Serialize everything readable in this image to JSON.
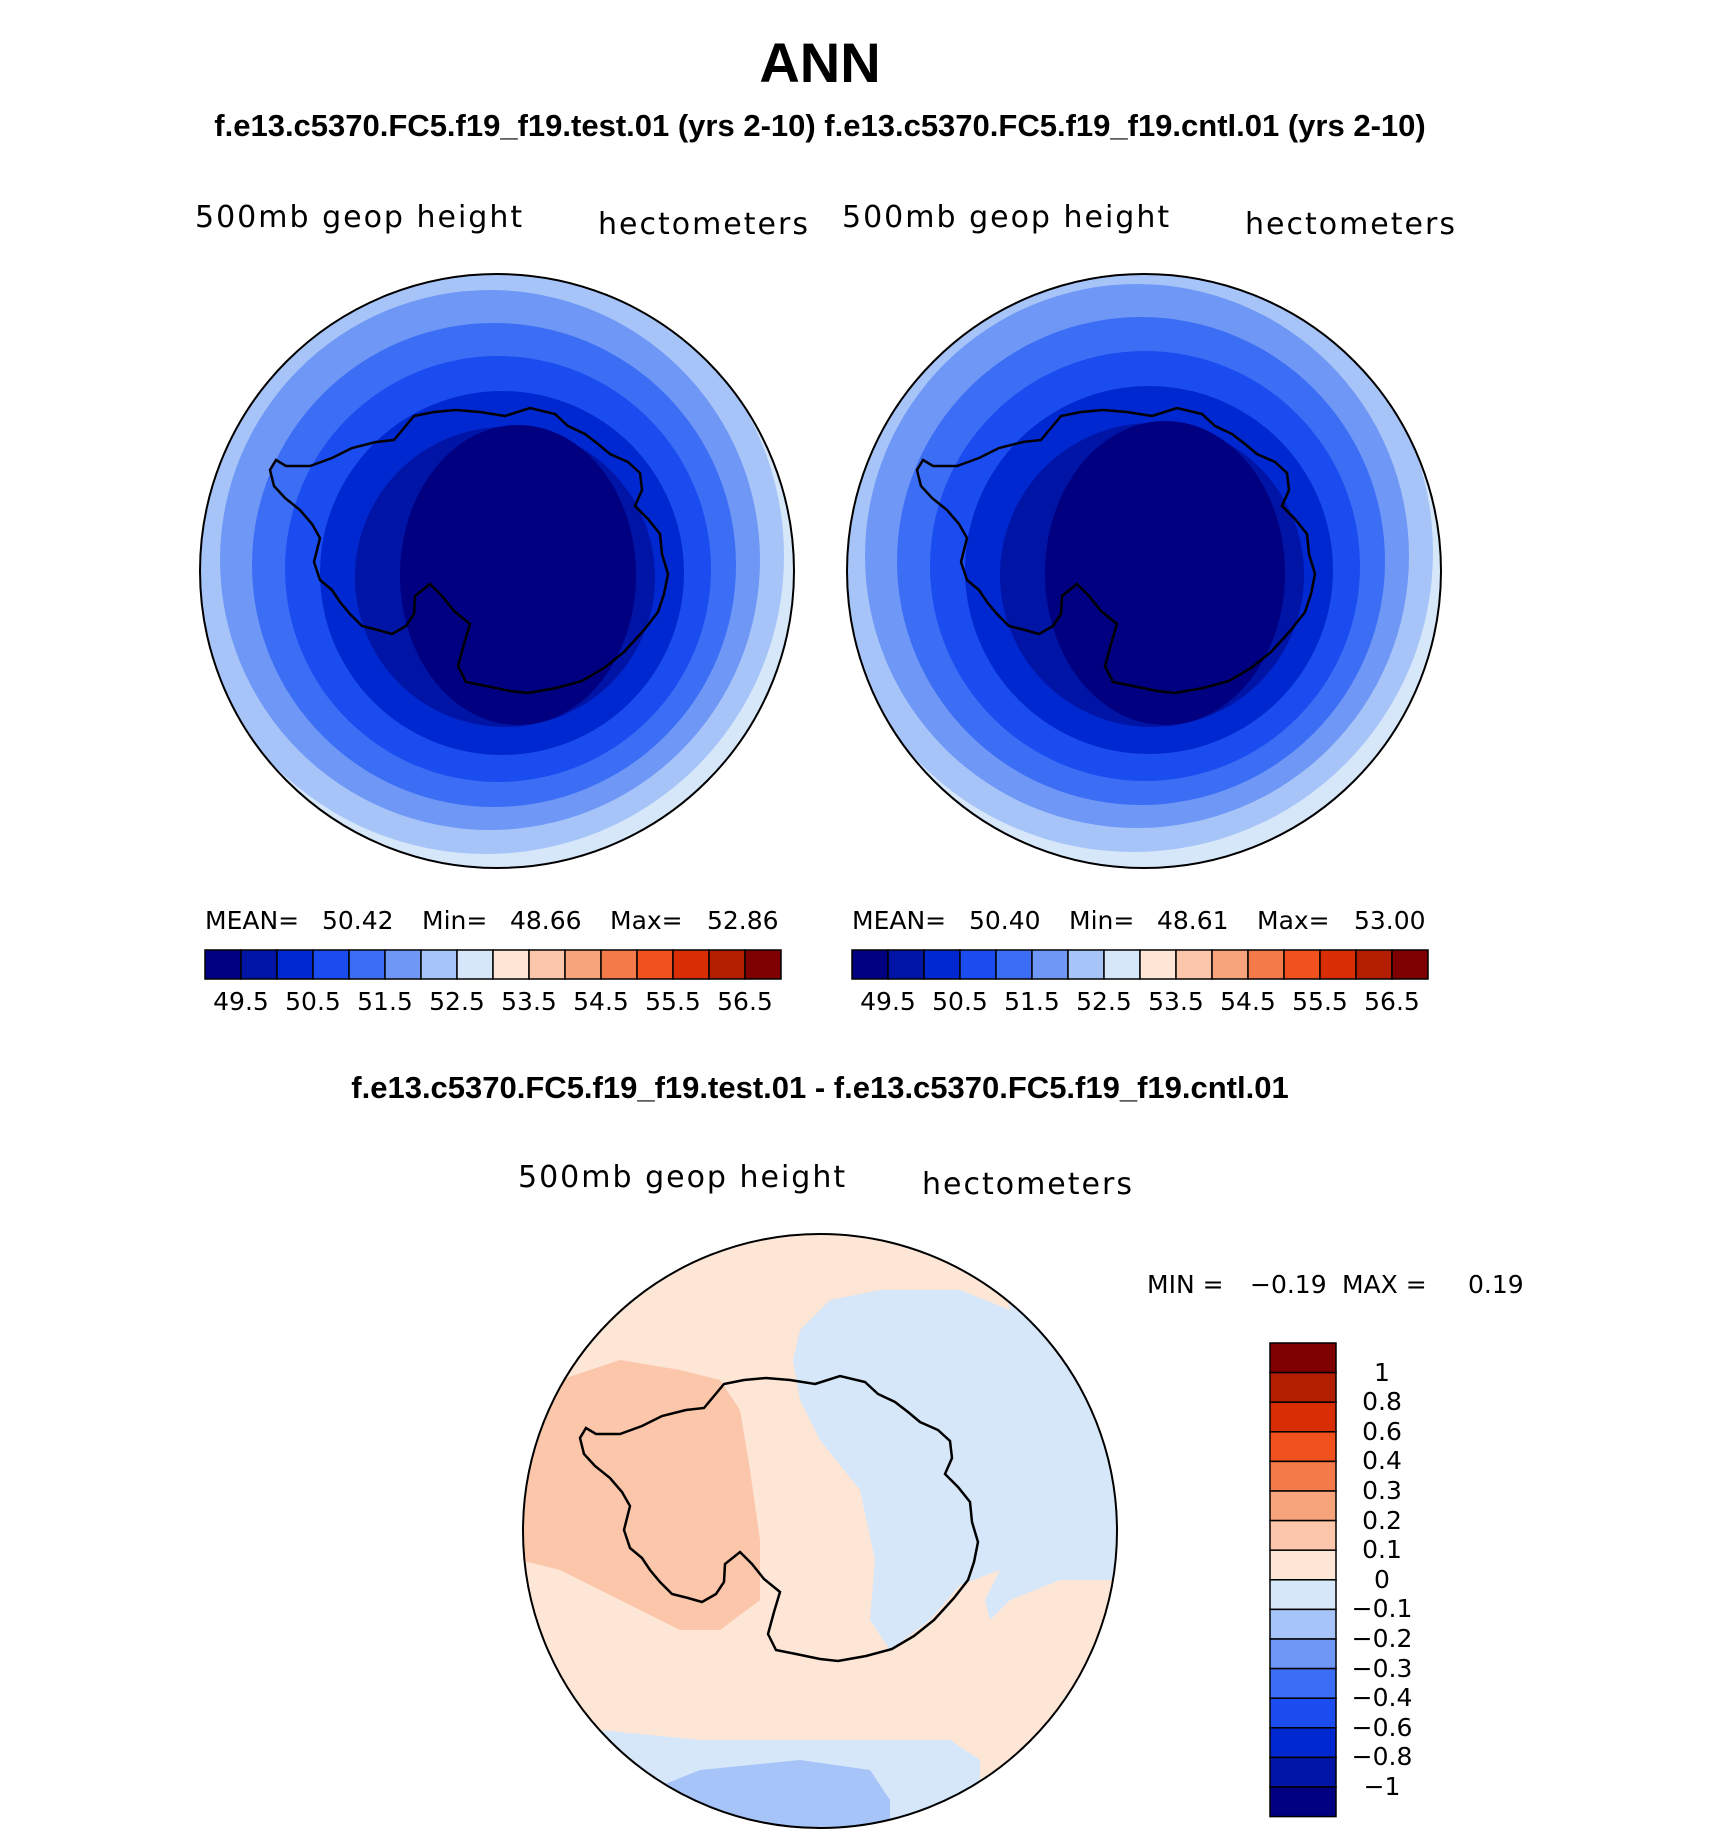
{
  "title": "ANN",
  "subtitle": "f.e13.c5370.FC5.f19_f19.test.01 (yrs 2-10) f.e13.c5370.FC5.f19_f19.cntl.01 (yrs 2-10)",
  "diff_title": "f.e13.c5370.FC5.f19_f19.test.01 - f.e13.c5370.FC5.f19_f19.cntl.01",
  "panels": [
    {
      "variable": "500mb geop height",
      "units": "hectometers",
      "stats": {
        "mean_label": "MEAN=",
        "mean": "50.42",
        "min_label": "Min=",
        "min": "48.66",
        "max_label": "Max=",
        "max": "52.86"
      }
    },
    {
      "variable": "500mb geop height",
      "units": "hectometers",
      "stats": {
        "mean_label": "MEAN=",
        "mean": "50.40",
        "min_label": "Min=",
        "min": "48.61",
        "max_label": "Max=",
        "max": "53.00"
      }
    }
  ],
  "diff_panel": {
    "variable": "500mb geop height",
    "units": "hectometers",
    "min_label": "MIN =",
    "min": "−0.19",
    "max_label": "MAX =",
    "max": "0.19"
  },
  "chart_data": [
    {
      "type": "heatmap",
      "projection": "south polar stereographic",
      "title": "500mb geop height",
      "units": "hectometers",
      "mean": 50.42,
      "min": 48.66,
      "max": 52.86,
      "levels": [
        49.5,
        50.5,
        51.5,
        52.5,
        53.5,
        54.5,
        55.5,
        56.5
      ],
      "colorbar_ticks": [
        "49.5",
        "50.5",
        "51.5",
        "52.5",
        "53.5",
        "54.5",
        "55.5",
        "56.5"
      ]
    },
    {
      "type": "heatmap",
      "projection": "south polar stereographic",
      "title": "500mb geop height",
      "units": "hectometers",
      "mean": 50.4,
      "min": 48.61,
      "max": 53.0,
      "levels": [
        49.5,
        50.5,
        51.5,
        52.5,
        53.5,
        54.5,
        55.5,
        56.5
      ],
      "colorbar_ticks": [
        "49.5",
        "50.5",
        "51.5",
        "52.5",
        "53.5",
        "54.5",
        "55.5",
        "56.5"
      ]
    },
    {
      "type": "heatmap",
      "projection": "south polar stereographic",
      "title": "500mb geop height (test - cntl)",
      "units": "hectometers",
      "min": -0.19,
      "max": 0.19,
      "levels": [
        -1,
        -0.8,
        -0.6,
        -0.4,
        -0.3,
        -0.2,
        -0.1,
        0,
        0.1,
        0.2,
        0.3,
        0.4,
        0.6,
        0.8,
        1
      ],
      "colorbar_ticks": [
        "1",
        "0.8",
        "0.6",
        "0.4",
        "0.3",
        "0.2",
        "0.1",
        "0",
        "−0.1",
        "−0.2",
        "−0.3",
        "−0.4",
        "−0.6",
        "−0.8",
        "−1"
      ]
    }
  ],
  "colors": {
    "abs_scale": [
      "#000080",
      "#0014a5",
      "#0028d0",
      "#1a4cf0",
      "#3c6ef5",
      "#6f97f6",
      "#a7c4f8",
      "#d6e7fa",
      "#fde6d6",
      "#fbc6a9",
      "#f7a37c",
      "#f47a4a",
      "#f0511d",
      "#d92d04",
      "#b31e00",
      "#7f0000"
    ],
    "diff_scale_top_to_bottom": [
      "#7f0000",
      "#b31e00",
      "#d92d04",
      "#f0511d",
      "#f47a4a",
      "#f7a37c",
      "#fbc6a9",
      "#fde6d6",
      "#d6e7fa",
      "#a7c4f8",
      "#6f97f6",
      "#3c6ef5",
      "#1a4cf0",
      "#0028d0",
      "#0014a5",
      "#000080"
    ]
  }
}
